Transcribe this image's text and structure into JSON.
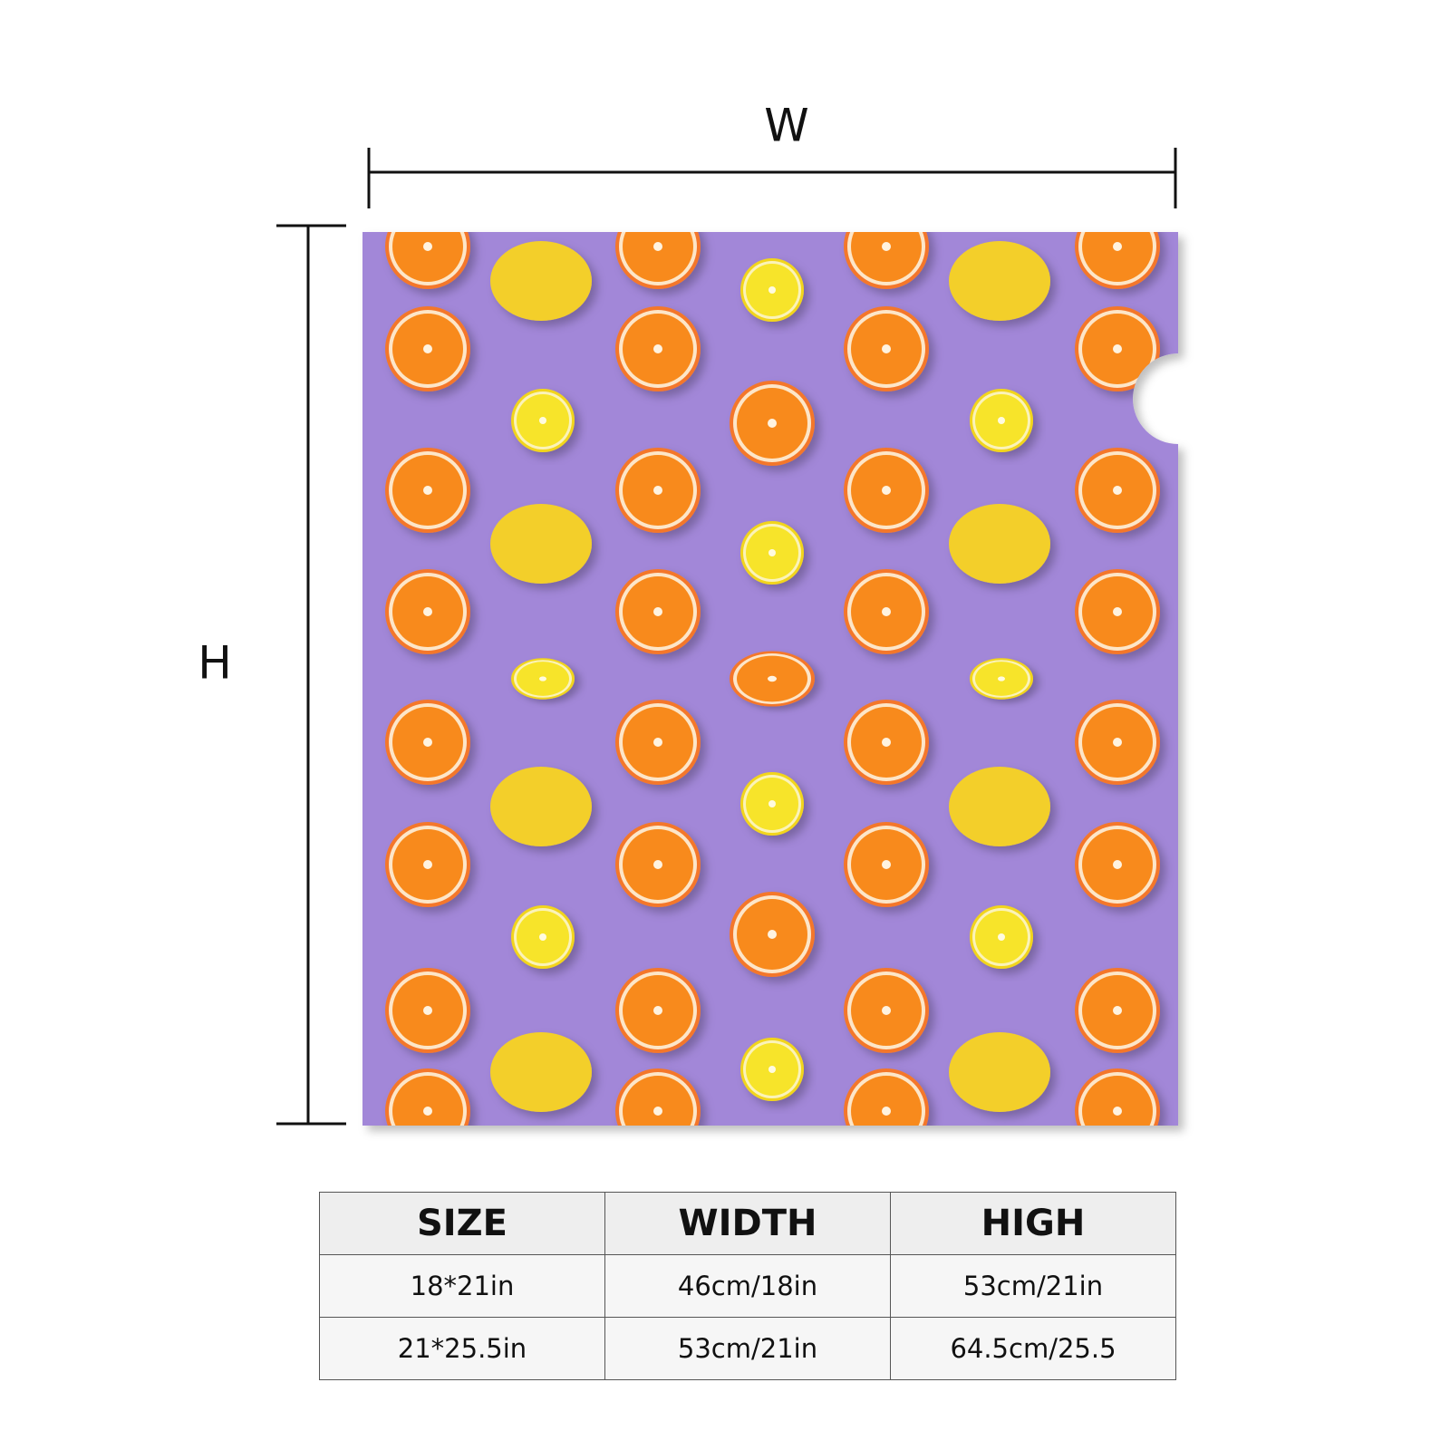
{
  "dimensions": {
    "width_label": "W",
    "height_label": "H"
  },
  "table": {
    "header": [
      "SIZE",
      "WIDTH",
      "HIGH"
    ],
    "rows": [
      [
        "18*21in",
        "46cm/18in",
        "53cm/21in"
      ],
      [
        "21*25.5in",
        "53cm/21in",
        "64.5cm/25.5"
      ]
    ]
  }
}
